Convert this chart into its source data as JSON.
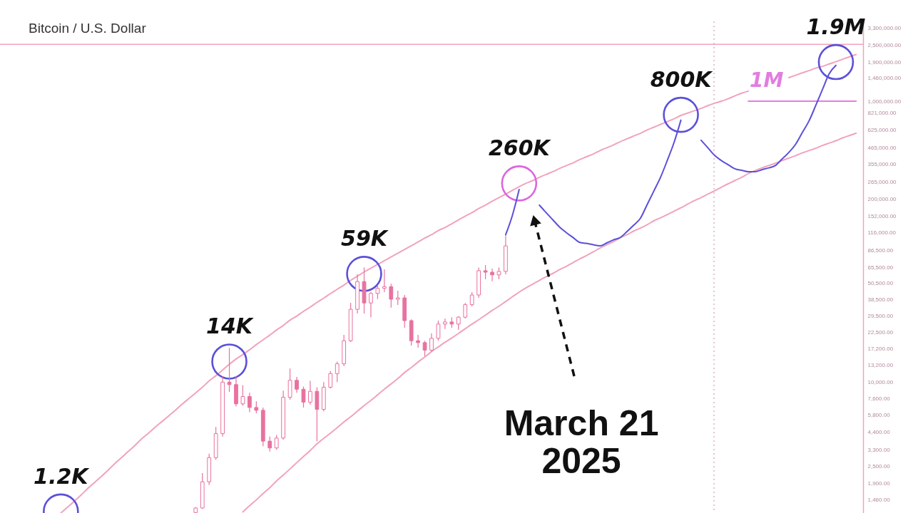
{
  "chart_data": {
    "type": "candlestick",
    "title": "Bitcoin / U.S. Dollar",
    "log": true,
    "tick_labels": "y",
    "color": "#e8729f",
    "ylim": [
      1170,
      3700000
    ],
    "yticks": [
      {
        "value": 1460,
        "label": "1,460.00"
      },
      {
        "value": 1900,
        "label": "1,900.00"
      },
      {
        "value": 2500,
        "label": "2,500.00"
      },
      {
        "value": 3300,
        "label": "3,300.00"
      },
      {
        "value": 4400,
        "label": "4,400.00"
      },
      {
        "value": 5800,
        "label": "5,800.00"
      },
      {
        "value": 7600,
        "label": "7,600.00"
      },
      {
        "value": 10000,
        "label": "10,000.00"
      },
      {
        "value": 13200,
        "label": "13,200.00"
      },
      {
        "value": 17200,
        "label": "17,200.00"
      },
      {
        "value": 22500,
        "label": "22,500.00"
      },
      {
        "value": 29500,
        "label": "29,500.00"
      },
      {
        "value": 38500,
        "label": "38,500.00"
      },
      {
        "value": 50500,
        "label": "50,500.00"
      },
      {
        "value": 65500,
        "label": "65,500.00"
      },
      {
        "value": 86500,
        "label": "86,500.00"
      },
      {
        "value": 116000,
        "label": "116,000.00"
      },
      {
        "value": 152000,
        "label": "152,000.00"
      },
      {
        "value": 200000,
        "label": "200,000.00"
      },
      {
        "value": 265000,
        "label": "265,000.00"
      },
      {
        "value": 355000,
        "label": "355,000.00"
      },
      {
        "value": 465000,
        "label": "465,000.00"
      },
      {
        "value": 625000,
        "label": "625,000.00"
      },
      {
        "value": 821000,
        "label": "821,000.00"
      },
      {
        "value": 1000000,
        "label": "1,000,000.00"
      },
      {
        "value": 1460000,
        "label": "1,460,000.00"
      },
      {
        "value": 1900000,
        "label": "1,900,000.00"
      },
      {
        "value": 2500000,
        "label": "2,500,000.00"
      },
      {
        "value": 3300000,
        "label": "3,300,000.00"
      }
    ],
    "categories": [
      null,
      null,
      null,
      null,
      null,
      null,
      null,
      null,
      null,
      null,
      null,
      null,
      null,
      null,
      null,
      null,
      null,
      null,
      null,
      null,
      null,
      null,
      null,
      null,
      null,
      null,
      null,
      null,
      null,
      null,
      null,
      null,
      null,
      null,
      null,
      null,
      null,
      null,
      null,
      null,
      null,
      null,
      null,
      null,
      null,
      null,
      null,
      null,
      null,
      null,
      null,
      null,
      null,
      null,
      null,
      null,
      null,
      null,
      null,
      null,
      null,
      null,
      null,
      null,
      null,
      null,
      null,
      null,
      null,
      null,
      null,
      null,
      null,
      null,
      null,
      null,
      null,
      null,
      null,
      null,
      null,
      null,
      null,
      null,
      null,
      null,
      null,
      null,
      null,
      null,
      null,
      null,
      null,
      null,
      null,
      null,
      null,
      null,
      null,
      null,
      null,
      null,
      null,
      null,
      null,
      null,
      null,
      null,
      null,
      null,
      null,
      null,
      null,
      null,
      null,
      null,
      null,
      null,
      null,
      null,
      null,
      null,
      null,
      null,
      null,
      null,
      null
    ],
    "ohlc": [
      null,
      null,
      null,
      null,
      null,
      null,
      null,
      null,
      null,
      null,
      null,
      null,
      null,
      null,
      null,
      null,
      null,
      null,
      null,
      null,
      null,
      null,
      null,
      null,
      null,
      null,
      null,
      null,
      [
        1180,
        1290,
        1175,
        1270
      ],
      [
        1270,
        2250,
        1250,
        1950
      ],
      [
        1950,
        3090,
        1850,
        2900
      ],
      [
        2900,
        4800,
        2800,
        4300
      ],
      [
        4300,
        11000,
        4100,
        10000
      ],
      [
        10000,
        17500,
        8500,
        9600
      ],
      [
        9600,
        11000,
        6700,
        7000
      ],
      [
        7000,
        9500,
        6800,
        7900
      ],
      [
        7900,
        8400,
        6100,
        6600
      ],
      [
        6600,
        7300,
        6000,
        6300
      ],
      [
        6300,
        6600,
        3500,
        3800
      ],
      [
        3800,
        4100,
        3200,
        3400
      ],
      [
        3400,
        4200,
        3300,
        4000
      ],
      [
        4000,
        8700,
        3900,
        7800
      ],
      [
        7800,
        12500,
        7500,
        10300
      ],
      [
        10300,
        10900,
        8400,
        8900
      ],
      [
        8900,
        9300,
        6600,
        7200
      ],
      [
        7200,
        10200,
        6900,
        8600
      ],
      [
        8600,
        9200,
        3800,
        6400
      ],
      [
        6400,
        10000,
        6200,
        9200
      ],
      [
        9200,
        12000,
        9000,
        11500
      ],
      [
        11500,
        14000,
        10000,
        13500
      ],
      [
        13500,
        21700,
        13000,
        19700
      ],
      [
        19700,
        36700,
        19300,
        33000
      ],
      [
        33000,
        58500,
        30800,
        52000
      ],
      [
        52000,
        65500,
        30800,
        36600
      ],
      [
        36600,
        43700,
        29000,
        42800
      ],
      [
        42800,
        49000,
        39000,
        46500
      ],
      [
        46500,
        63500,
        43700,
        47800
      ],
      [
        47800,
        50200,
        33900,
        38900
      ],
      [
        38900,
        44700,
        35400,
        39800
      ],
      [
        39800,
        41700,
        24400,
        27400
      ],
      [
        27400,
        28000,
        18200,
        19700
      ],
      [
        19700,
        21700,
        17600,
        19100
      ],
      [
        19100,
        19700,
        15300,
        16900
      ],
      [
        16900,
        22200,
        16500,
        20500
      ],
      [
        20500,
        27400,
        19700,
        25900
      ],
      [
        25900,
        28400,
        23900,
        26800
      ],
      [
        26800,
        29000,
        24400,
        25900
      ],
      [
        25900,
        29500,
        23600,
        29000
      ],
      [
        29000,
        36600,
        28400,
        35600
      ],
      [
        35600,
        43700,
        34600,
        41700
      ],
      [
        41700,
        65500,
        39800,
        62100
      ],
      [
        62100,
        68200,
        54000,
        60600
      ],
      [
        60600,
        64300,
        52300,
        58000
      ],
      [
        58000,
        65500,
        54000,
        61400
      ],
      [
        61400,
        111000,
        58500,
        93300
      ],
      null,
      null,
      null,
      null,
      null,
      null,
      null,
      null,
      null,
      null,
      null,
      null,
      null,
      null,
      null,
      null,
      null,
      null,
      null,
      null,
      null,
      null,
      null,
      null,
      null,
      null,
      null,
      null,
      null,
      null,
      null,
      null,
      null,
      null,
      null,
      null,
      null,
      null,
      null,
      null,
      null,
      null,
      null,
      null,
      null,
      null,
      null,
      null,
      null,
      null,
      null,
      null
    ],
    "series": [
      {
        "type": "line",
        "color": "#f0a3bd",
        "values": [
          null,
          null,
          null,
          null,
          null,
          null,
          null,
          null,
          1170,
          1290,
          1420,
          1570,
          1750,
          1930,
          2130,
          2360,
          2630,
          2900,
          3210,
          3540,
          3950,
          4330,
          4780,
          5240,
          5750,
          6310,
          6970,
          7640,
          8380,
          9190,
          10200,
          11100,
          12200,
          13400,
          14600,
          15700,
          17000,
          18500,
          20000,
          21600,
          23500,
          25300,
          27600,
          29500,
          31900,
          34200,
          36900,
          39600,
          42700,
          45800,
          49100,
          53000,
          56800,
          60800,
          64700,
          68800,
          73100,
          77800,
          82700,
          88000,
          93500,
          99400,
          106000,
          112000,
          120000,
          126000,
          134000,
          143000,
          152000,
          161000,
          172000,
          182000,
          194000,
          206000,
          218000,
          232000,
          246000,
          260000,
          272000,
          287000,
          301000,
          315000,
          332000,
          348000,
          364000,
          384000,
          402000,
          421000,
          445000,
          466000,
          488000,
          515000,
          539000,
          565000,
          591000,
          624000,
          653000,
          684000,
          716000,
          750000,
          792000,
          823000,
          855000,
          888000,
          930000,
          967000,
          1000000,
          1040000,
          1090000,
          1140000,
          1180000,
          null,
          null,
          null,
          null,
          null,
          1470000,
          1530000,
          1590000,
          1650000,
          1720000,
          1770000,
          1840000,
          1910000,
          1990000,
          2070000,
          2150000
        ]
      },
      {
        "type": "line",
        "color": "#f0a3bd",
        "values": [
          null,
          null,
          null,
          null,
          null,
          null,
          null,
          null,
          null,
          null,
          null,
          null,
          null,
          null,
          null,
          null,
          null,
          null,
          null,
          null,
          null,
          null,
          null,
          null,
          null,
          null,
          null,
          null,
          null,
          null,
          null,
          null,
          null,
          null,
          null,
          1190,
          1320,
          1450,
          1610,
          1770,
          1980,
          2180,
          2410,
          2670,
          2950,
          3260,
          3630,
          3980,
          4330,
          4740,
          5200,
          5660,
          6210,
          6810,
          7410,
          8120,
          8910,
          9700,
          10600,
          11700,
          12700,
          13900,
          15100,
          16500,
          17800,
          19200,
          20600,
          22200,
          24000,
          25900,
          27800,
          30000,
          32400,
          34700,
          37500,
          40500,
          43700,
          46800,
          49800,
          53000,
          56300,
          59400,
          63200,
          66700,
          70900,
          75400,
          79600,
          84600,
          90000,
          95000,
          100000,
          107000,
          112000,
          119000,
          125000,
          132000,
          141000,
          148000,
          156000,
          165000,
          174000,
          185000,
          196000,
          206000,
          218000,
          230000,
          244000,
          258000,
          272000,
          287000,
          305000,
          320000,
          335000,
          348000,
          361000,
          378000,
          393000,
          409000,
          428000,
          445000,
          462000,
          484000,
          503000,
          523000,
          548000,
          569000,
          591000
        ]
      },
      {
        "type": "line",
        "name": "1M",
        "color": "#e27de0",
        "values": [
          null,
          null,
          null,
          null,
          null,
          null,
          null,
          null,
          null,
          null,
          null,
          null,
          null,
          null,
          null,
          null,
          null,
          null,
          null,
          null,
          null,
          null,
          null,
          null,
          null,
          null,
          null,
          null,
          null,
          null,
          null,
          null,
          null,
          null,
          null,
          null,
          null,
          null,
          null,
          null,
          null,
          null,
          null,
          null,
          null,
          null,
          null,
          null,
          null,
          null,
          null,
          null,
          null,
          null,
          null,
          null,
          null,
          null,
          null,
          null,
          null,
          null,
          null,
          null,
          null,
          null,
          null,
          null,
          null,
          null,
          null,
          null,
          null,
          null,
          null,
          null,
          null,
          null,
          null,
          null,
          null,
          null,
          null,
          null,
          null,
          null,
          null,
          null,
          null,
          null,
          null,
          null,
          null,
          null,
          null,
          null,
          null,
          null,
          null,
          null,
          null,
          null,
          null,
          null,
          null,
          null,
          null,
          null,
          null,
          null,
          1000000,
          1000000,
          1000000,
          1000000,
          1000000,
          1000000,
          1000000,
          1000000,
          1000000,
          1000000,
          1000000,
          1000000,
          1000000,
          1000000,
          1000000,
          1000000,
          1000000
        ]
      },
      {
        "type": "scatter",
        "marker": "circle",
        "values": [
          null,
          null,
          null,
          null,
          null,
          null,
          null,
          null,
          1200,
          null,
          null,
          null,
          null,
          null,
          null,
          null,
          null,
          null,
          null,
          null,
          null,
          null,
          null,
          null,
          null,
          null,
          null,
          null,
          null,
          null,
          null,
          null,
          null,
          14000,
          null,
          null,
          null,
          null,
          null,
          null,
          null,
          null,
          null,
          null,
          null,
          null,
          null,
          null,
          null,
          null,
          null,
          null,
          null,
          59000,
          null,
          null,
          null,
          null,
          null,
          null,
          null,
          null,
          null,
          null,
          null,
          null,
          null,
          null,
          null,
          null,
          null,
          null,
          null,
          null,
          null,
          null,
          260000,
          null,
          null,
          null,
          null,
          null,
          null,
          null,
          null,
          null,
          null,
          null,
          null,
          null,
          null,
          null,
          null,
          null,
          null,
          null,
          null,
          null,
          null,
          null,
          800000,
          null,
          null,
          null,
          null,
          null,
          null,
          null,
          null,
          null,
          null,
          null,
          null,
          null,
          null,
          null,
          null,
          null,
          null,
          null,
          null,
          null,
          null,
          1900000,
          null,
          null,
          null
        ],
        "colors": [
          null,
          null,
          null,
          null,
          null,
          null,
          null,
          null,
          "#5b50d9",
          null,
          null,
          null,
          null,
          null,
          null,
          null,
          null,
          null,
          null,
          null,
          null,
          null,
          null,
          null,
          null,
          null,
          null,
          null,
          null,
          null,
          null,
          null,
          null,
          "#5b50d9",
          null,
          null,
          null,
          null,
          null,
          null,
          null,
          null,
          null,
          null,
          null,
          null,
          null,
          null,
          null,
          null,
          null,
          null,
          null,
          "#5b50d9",
          null,
          null,
          null,
          null,
          null,
          null,
          null,
          null,
          null,
          null,
          null,
          null,
          null,
          null,
          null,
          null,
          null,
          null,
          null,
          null,
          null,
          null,
          "#dd66dd",
          null,
          null,
          null,
          null,
          null,
          null,
          null,
          null,
          null,
          null,
          null,
          null,
          null,
          null,
          null,
          null,
          null,
          null,
          null,
          null,
          null,
          null,
          null,
          "#5b50d9",
          null,
          null,
          null,
          null,
          null,
          null,
          null,
          null,
          null,
          null,
          null,
          null,
          null,
          null,
          null,
          null,
          null,
          null,
          null,
          null,
          null,
          null,
          "#5b50d9",
          null,
          null,
          null
        ],
        "value_labels": [
          null,
          null,
          null,
          null,
          null,
          null,
          null,
          null,
          "1.2K",
          null,
          null,
          null,
          null,
          null,
          null,
          null,
          null,
          null,
          null,
          null,
          null,
          null,
          null,
          null,
          null,
          null,
          null,
          null,
          null,
          null,
          null,
          null,
          null,
          "14K",
          null,
          null,
          null,
          null,
          null,
          null,
          null,
          null,
          null,
          null,
          null,
          null,
          null,
          null,
          null,
          null,
          null,
          null,
          null,
          "59K",
          null,
          null,
          null,
          null,
          null,
          null,
          null,
          null,
          null,
          null,
          null,
          null,
          null,
          null,
          null,
          null,
          null,
          null,
          null,
          null,
          null,
          null,
          "260K",
          null,
          null,
          null,
          null,
          null,
          null,
          null,
          null,
          null,
          null,
          null,
          null,
          null,
          null,
          null,
          null,
          null,
          null,
          null,
          null,
          null,
          null,
          null,
          "800K",
          null,
          null,
          null,
          null,
          null,
          null,
          null,
          null,
          null,
          null,
          null,
          null,
          null,
          null,
          null,
          null,
          null,
          null,
          null,
          null,
          null,
          null,
          "1.9M",
          null,
          null,
          null
        ]
      },
      {
        "type": "line",
        "color": "#5b50d9",
        "values": [
          null,
          null,
          null,
          null,
          null,
          null,
          null,
          null,
          null,
          null,
          null,
          null,
          null,
          null,
          null,
          null,
          null,
          null,
          null,
          null,
          null,
          null,
          null,
          null,
          null,
          null,
          null,
          null,
          null,
          null,
          null,
          null,
          null,
          null,
          null,
          null,
          null,
          null,
          null,
          null,
          null,
          null,
          null,
          null,
          null,
          null,
          null,
          null,
          null,
          null,
          null,
          null,
          null,
          null,
          null,
          null,
          null,
          null,
          null,
          null,
          null,
          null,
          null,
          null,
          null,
          null,
          null,
          null,
          null,
          null,
          null,
          null,
          null,
          null,
          112000,
          154000,
          235000,
          null,
          null,
          182000,
          161000,
          143000,
          127000,
          116000,
          107000,
          98700,
          97200,
          95000,
          93500,
          97900,
          103000,
          107000,
          118000,
          131000,
          147000,
          184000,
          230000,
          289000,
          381000,
          511000,
          733000,
          null,
          null,
          527000,
          466000,
          412000,
          378000,
          353000,
          330000,
          322000,
          315000,
          315000,
          325000,
          335000,
          348000,
          387000,
          431000,
          492000,
          596000,
          722000,
          930000,
          1210000,
          1570000,
          1800000,
          null,
          null,
          null
        ]
      }
    ],
    "ref_lines": [
      {
        "axis": "y",
        "value": 2540000,
        "color": "#f0a3bd"
      }
    ],
    "annotations": [
      "March 21\n2025"
    ]
  }
}
